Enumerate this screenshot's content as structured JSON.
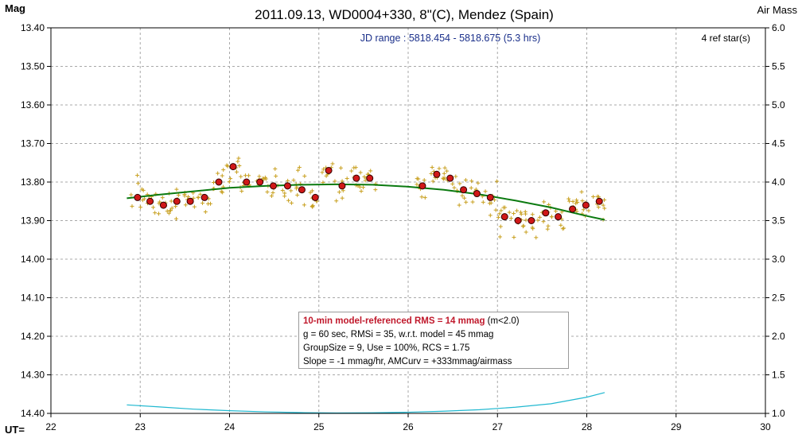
{
  "chart_data": {
    "type": "scatter",
    "title": "2011.09.13, WD0004+330, 8\"(C), Mendez (Spain)",
    "subtitle": "JD range : 5818.454 - 5818.675 (5.3 hrs)",
    "ref_stars": "4 ref star(s)",
    "ylabel": "Mag",
    "y2label": "Air Mass",
    "xlabel": "UT=",
    "xlim": [
      22,
      30
    ],
    "ylim": [
      14.4,
      13.4
    ],
    "y2lim": [
      1.0,
      6.0
    ],
    "x_ticks": [
      "22",
      "23",
      "24",
      "25",
      "26",
      "27",
      "28",
      "29",
      "30"
    ],
    "y_ticks": [
      "13.40",
      "13.50",
      "13.60",
      "13.70",
      "13.80",
      "13.90",
      "14.00",
      "14.10",
      "14.20",
      "14.30",
      "14.40"
    ],
    "y2_ticks": [
      "6.0",
      "5.5",
      "5.0",
      "4.5",
      "4.0",
      "3.5",
      "3.0",
      "2.5",
      "2.0",
      "1.5",
      "1.0"
    ],
    "grid": true,
    "colors": {
      "raw": "#c8a020",
      "binned": "#d01818",
      "model": "#0b7a10",
      "airmass": "#20b8d0",
      "grid": "#a8a8a8",
      "subtitle": "#1a2f8a"
    },
    "series": [
      {
        "name": "",
        "type": "binned",
        "x": [
          22.97,
          23.11,
          23.26,
          23.41,
          23.56,
          23.72,
          23.88,
          24.04,
          24.19,
          24.34,
          24.49,
          24.65,
          24.81,
          24.96,
          25.11,
          25.26,
          25.42,
          25.57,
          26.16,
          26.32,
          26.47,
          26.62,
          26.77,
          26.92,
          27.08,
          27.23,
          27.38,
          27.54,
          27.68,
          27.84,
          27.99,
          28.14
        ],
        "y": [
          13.84,
          13.85,
          13.86,
          13.85,
          13.85,
          13.84,
          13.8,
          13.76,
          13.8,
          13.8,
          13.81,
          13.81,
          13.82,
          13.84,
          13.77,
          13.81,
          13.79,
          13.79,
          13.81,
          13.78,
          13.79,
          13.82,
          13.83,
          13.84,
          13.89,
          13.9,
          13.9,
          13.88,
          13.89,
          13.87,
          13.86,
          13.85
        ]
      },
      {
        "name": "",
        "type": "model",
        "x": [
          22.85,
          23.2,
          23.6,
          24.0,
          24.4,
          24.8,
          25.2,
          25.6,
          26.0,
          26.4,
          26.8,
          27.2,
          27.6,
          28.0,
          28.2
        ],
        "y": [
          13.842,
          13.833,
          13.824,
          13.815,
          13.81,
          13.807,
          13.806,
          13.807,
          13.812,
          13.82,
          13.832,
          13.848,
          13.866,
          13.888,
          13.898
        ]
      },
      {
        "name": "",
        "type": "airmass",
        "x": [
          22.85,
          23.2,
          23.6,
          24.0,
          24.4,
          24.8,
          25.2,
          25.6,
          26.0,
          26.4,
          26.8,
          27.2,
          27.6,
          28.0,
          28.2
        ],
        "y2": [
          1.11,
          1.085,
          1.055,
          1.035,
          1.02,
          1.01,
          1.005,
          1.008,
          1.015,
          1.028,
          1.048,
          1.08,
          1.125,
          1.21,
          1.27
        ]
      }
    ],
    "raw_scatter_note": ""
  },
  "stats": {
    "line1_bold": "10-min model-referenced RMS = 14 mmag",
    "line1_extra": " (m<2.0)",
    "line2": "g = 60 sec, RMSi = 35, w.r.t. model = 45 mmag",
    "line3": "GroupSize = 9, Use = 100%, RCS = 1.75",
    "line4": "Slope = -1 mmag/hr, AMCurv = +333mmag/airmass"
  }
}
